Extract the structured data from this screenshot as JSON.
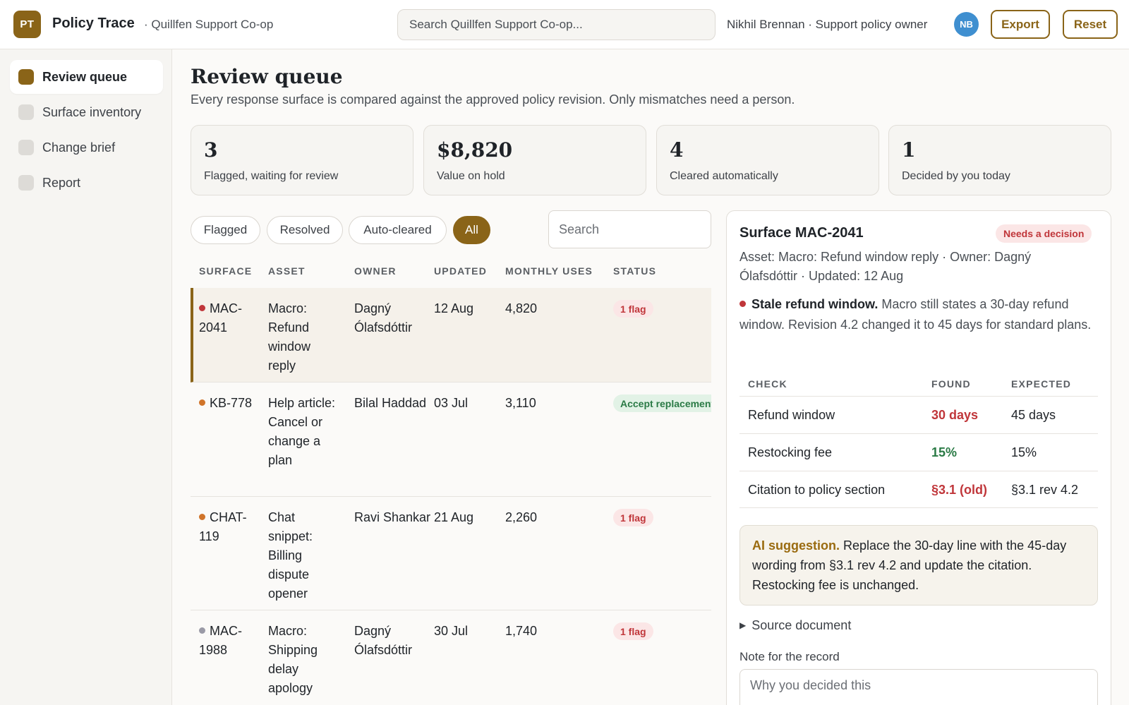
{
  "app": {
    "logo": "PT",
    "name": "Policy Trace",
    "org": "· Quillfen Support Co-op"
  },
  "header": {
    "search_placeholder": "Search Quillfen Support Co-op...",
    "user": "Nikhil Brennan · Support policy owner",
    "avatar": "NB",
    "export_label": "Export",
    "reset_label": "Reset"
  },
  "sidebar": {
    "items": [
      {
        "label": "Review queue",
        "active": true
      },
      {
        "label": "Surface inventory",
        "active": false
      },
      {
        "label": "Change brief",
        "active": false
      },
      {
        "label": "Report",
        "active": false
      }
    ]
  },
  "main": {
    "title": "Review queue",
    "subtitle": "Every response surface is compared against the approved policy revision. Only mismatches need a person.",
    "stats": [
      {
        "value": "3",
        "label": "Flagged, waiting for review"
      },
      {
        "value": "$8,820",
        "label": "Value on hold"
      },
      {
        "value": "4",
        "label": "Cleared automatically"
      },
      {
        "value": "1",
        "label": "Decided by you today"
      }
    ],
    "filters": [
      "Flagged",
      "Resolved",
      "Auto-cleared",
      "All"
    ],
    "active_filter": "All",
    "search_placeholder": "Search"
  },
  "table": {
    "columns": [
      "SURFACE",
      "ASSET",
      "OWNER",
      "UPDATED",
      "MONTHLY USES",
      "STATUS"
    ],
    "rows": [
      {
        "surface": "MAC-2041",
        "asset": "Macro: Refund window reply",
        "owner": "Dagný Ólafsdóttir",
        "updated": "12 Aug",
        "uses": "4,820",
        "status": "1 flag",
        "dot": "#c0363a"
      },
      {
        "surface": "KB-778",
        "asset": "Help article: Cancel or change a plan",
        "owner": "Bilal Haddad",
        "updated": "03 Jul",
        "uses": "3,110",
        "status": "Accept replacement",
        "dot": "#d0742a"
      },
      {
        "surface": "CHAT-119",
        "asset": "Chat snippet: Billing dispute opener",
        "owner": "Ravi Shankar",
        "updated": "21 Aug",
        "uses": "2,260",
        "status": "1 flag",
        "dot": "#d0742a"
      },
      {
        "surface": "MAC-1988",
        "asset": "Macro: Shipping delay apology",
        "owner": "Dagný Ólafsdóttir",
        "updated": "30 Jul",
        "uses": "1,740",
        "status": "1 flag",
        "dot": "#9a9aa6"
      }
    ]
  },
  "detail": {
    "title": "Surface MAC-2041",
    "badge": "Needs a decision",
    "meta": "Asset: Macro: Refund window reply · Owner: Dagný Ólafsdóttir · Updated: 12 Aug",
    "issue_title": "Stale refund window.",
    "issue_text": " Macro still states a 30-day refund window. Revision 4.2 changed it to 45 days for standard plans.",
    "check_columns": [
      "CHECK",
      "FOUND",
      "EXPECTED"
    ],
    "checks": [
      {
        "check": "Refund window",
        "found": "30 days",
        "expected": "45 days",
        "ok": false
      },
      {
        "check": "Restocking fee",
        "found": "15%",
        "expected": "15%",
        "ok": true
      },
      {
        "check": "Citation to policy section",
        "found": "§3.1 (old)",
        "expected": "§3.1 rev 4.2",
        "ok": false
      }
    ],
    "ai_label": "AI suggestion.",
    "ai_text": " Replace the 30-day line with the 45-day wording from §3.1 rev 4.2 and update the citation. Restocking fee is unchanged.",
    "source_label": "Source document",
    "note_label": "Note for the record",
    "note_placeholder": "Why you decided this"
  }
}
